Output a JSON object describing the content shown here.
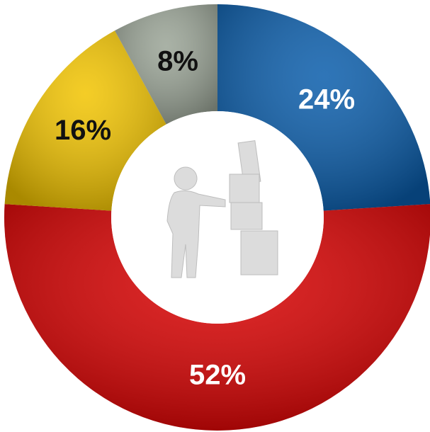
{
  "chart_data": {
    "type": "donut",
    "categories": [
      null,
      null,
      null,
      null
    ],
    "values": [
      24,
      52,
      16,
      8
    ],
    "value_labels": [
      "24%",
      "52%",
      "16%",
      "8%"
    ],
    "colors": [
      "#0a5dab",
      "#d90000",
      "#f2c400",
      "#9aa496"
    ],
    "label_colors": [
      "#ffffff",
      "#ffffff",
      "#111111",
      "#111111"
    ]
  }
}
